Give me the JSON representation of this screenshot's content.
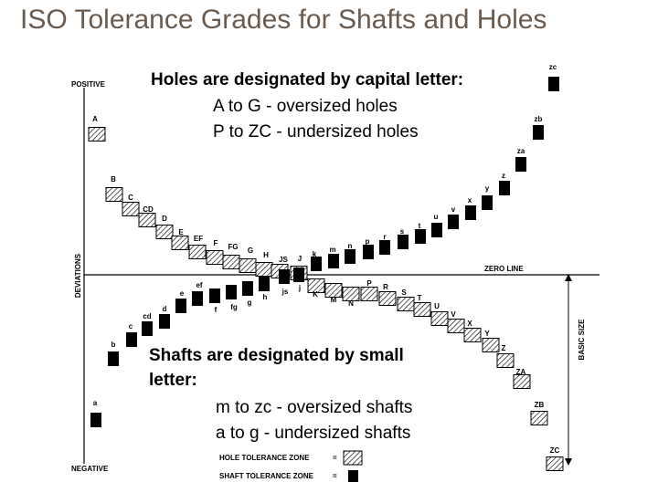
{
  "header": {
    "title": "ISO Tolerance Grades for Shafts and Holes"
  },
  "axes": {
    "positive": "POSITIVE",
    "negative": "NEGATIVE",
    "deviations": "DEVIATIONS",
    "zero_line": "ZERO LINE",
    "basic_size": "BASIC SIZE"
  },
  "holes_note": {
    "heading": "Holes are designated by capital letter:",
    "lines": [
      "A to G - oversized holes",
      "P to ZC - undersized holes"
    ]
  },
  "shafts_note": {
    "heading": [
      "Shafts are designated by small",
      "letter:"
    ],
    "lines": [
      "m to zc - oversized shafts",
      "a to g - undersized shafts"
    ]
  },
  "grades": {
    "holes": [
      "A",
      "B",
      "C",
      "CD",
      "D",
      "E",
      "EF",
      "F",
      "FG",
      "G",
      "H",
      "JS",
      "J",
      "K",
      "M",
      "N",
      "P",
      "R",
      "S",
      "T",
      "U",
      "V",
      "X",
      "Y",
      "Z",
      "ZA",
      "ZB",
      "ZC"
    ],
    "shafts": [
      "a",
      "b",
      "c",
      "cd",
      "d",
      "e",
      "ef",
      "f",
      "fg",
      "g",
      "h",
      "js",
      "j",
      "k",
      "m",
      "n",
      "p",
      "r",
      "s",
      "t",
      "u",
      "v",
      "x",
      "y",
      "z",
      "za",
      "zb",
      "zc"
    ]
  },
  "legend": {
    "items": [
      {
        "label": "HOLE TOLERANCE ZONE",
        "symbol": "="
      },
      {
        "label": "SHAFT TOLERANCE ZONE",
        "symbol": "="
      }
    ]
  }
}
